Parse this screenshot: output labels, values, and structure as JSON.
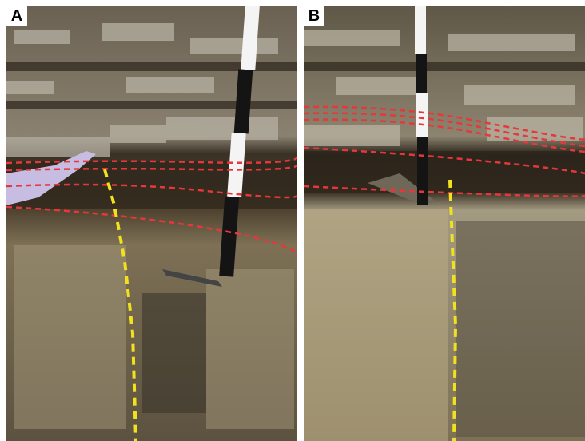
{
  "figure": {
    "panels": [
      {
        "label": "A",
        "description_icon": "outcrop-photo",
        "has_measuring_pole": true,
        "has_hand": true
      },
      {
        "label": "B",
        "description_icon": "outcrop-photo",
        "has_measuring_pole": true,
        "has_hammer": true
      }
    ],
    "colors": {
      "bedding_line": "#e8373a",
      "fault_line": "#f2e21d",
      "pole_white": "#f4f4f4",
      "pole_black": "#141414"
    }
  }
}
